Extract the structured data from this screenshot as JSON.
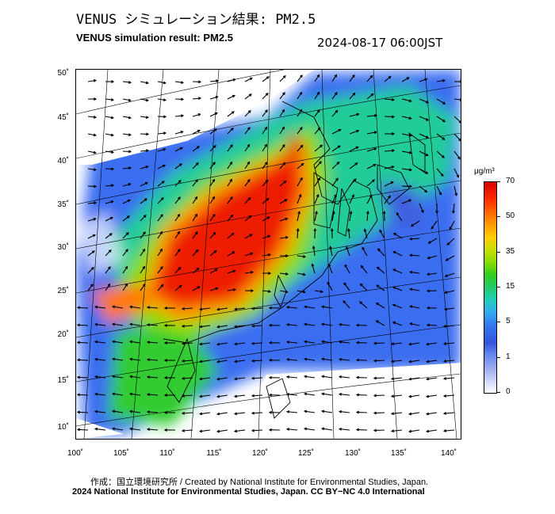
{
  "header": {
    "title_jp": "VENUS シミュレーション結果: PM2.5",
    "title_en": "VENUS simulation result: PM2.5",
    "timestamp": "2024-08-17 06:00JST"
  },
  "axes": {
    "latitude_labels": [
      "50˚",
      "45˚",
      "40˚",
      "35˚",
      "30˚",
      "25˚",
      "20˚",
      "15˚",
      "10˚"
    ],
    "longitude_labels": [
      "100˚",
      "105˚",
      "110˚",
      "115˚",
      "120˚",
      "125˚",
      "130˚",
      "135˚",
      "140˚"
    ]
  },
  "colorbar": {
    "unit": "μg/m³",
    "ticks": [
      "70",
      "50",
      "35",
      "15",
      "5",
      "1",
      "0"
    ],
    "colors": [
      "#d80000",
      "#ff9900",
      "#ffcc00",
      "#33cc22",
      "#22ccbb",
      "#3377ee",
      "#ffffff"
    ]
  },
  "credits": {
    "jp": "作成：国立環境研究所 / Created by National Institute for Environmental Studies, Japan.",
    "en": "2024 National Institute for Environmental Studies, Japan. CC BY−NC 4.0 International"
  }
}
